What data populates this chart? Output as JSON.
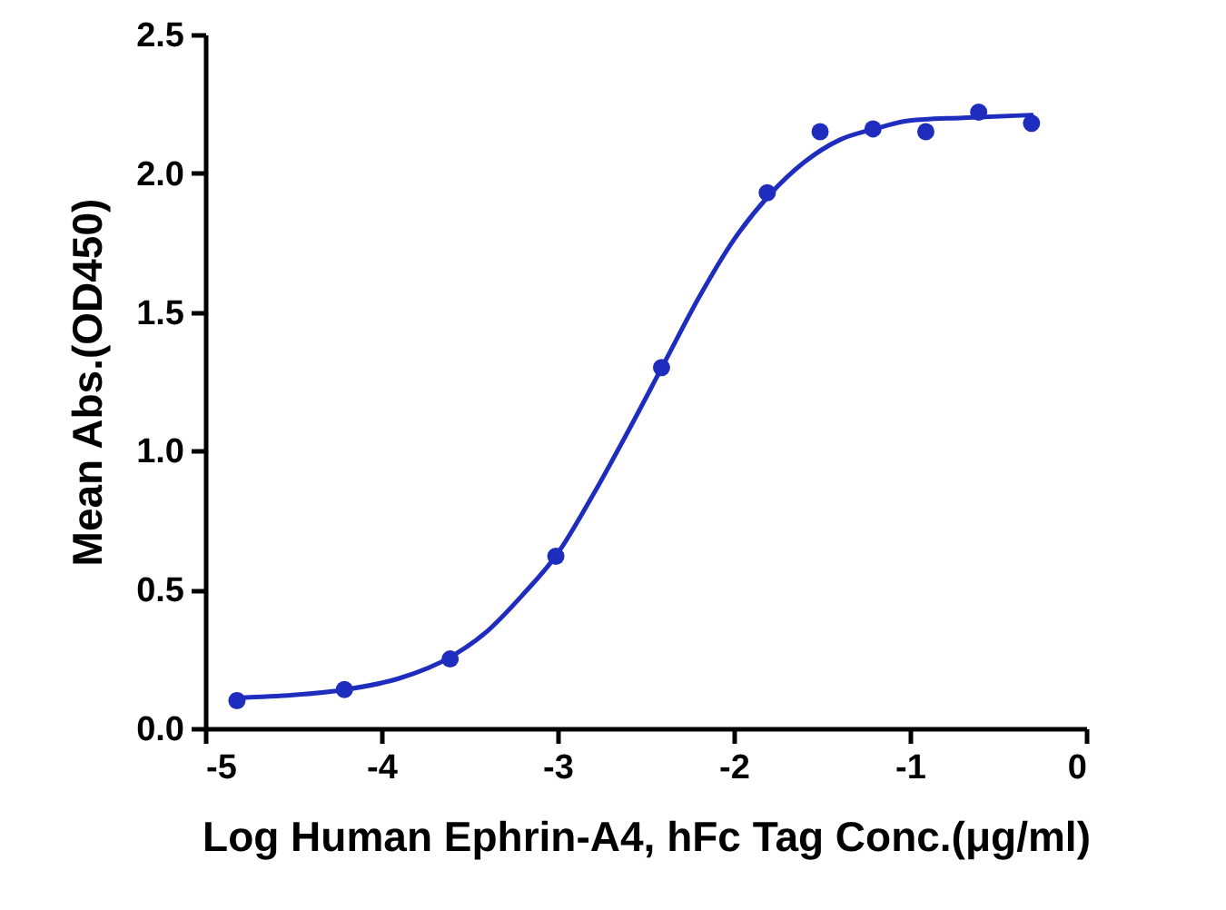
{
  "chart_data": {
    "type": "scatter",
    "xlabel": "Log Human Ephrin-A4, hFc Tag Conc.(μg/ml)",
    "ylabel": "Mean Abs.(OD450)",
    "xlim": [
      -5,
      0
    ],
    "xticks": [
      -5,
      -4,
      -3,
      -2,
      -1,
      0
    ],
    "ylim": [
      0,
      2.5
    ],
    "yticks": [
      {
        "value": 0,
        "label": "0.0"
      },
      {
        "value": 0.5,
        "label": "0.5"
      },
      {
        "value": 1,
        "label": "1.0"
      },
      {
        "value": 1.5,
        "label": "1.5"
      },
      {
        "value": 2,
        "label": "2.0"
      },
      {
        "value": 2.5,
        "label": "2.5"
      }
    ],
    "grid": false,
    "series": [
      {
        "marker": "circle",
        "color": "#1f2dbf",
        "x": [
          -4.82,
          -4.21,
          -3.61,
          -3.01,
          -2.41,
          -1.81,
          -1.51,
          -1.21,
          -0.91,
          -0.61,
          -0.31
        ],
        "values": [
          0.1,
          0.14,
          0.25,
          0.62,
          1.3,
          1.93,
          2.15,
          2.16,
          2.15,
          2.22,
          2.18
        ]
      },
      {
        "type": "line",
        "color": "#1f2dbf",
        "line_style": "solid",
        "x": [
          -4.82,
          -4.5,
          -4.2,
          -3.9,
          -3.6,
          -3.4,
          -3.2,
          -3.0,
          -2.8,
          -2.6,
          -2.4,
          -2.2,
          -2.0,
          -1.8,
          -1.6,
          -1.4,
          -1.2,
          -1.0,
          -0.7,
          -0.31
        ],
        "values": [
          0.11,
          0.12,
          0.14,
          0.18,
          0.26,
          0.35,
          0.48,
          0.63,
          0.84,
          1.07,
          1.31,
          1.55,
          1.76,
          1.92,
          2.04,
          2.12,
          2.16,
          2.19,
          2.2,
          2.21
        ]
      }
    ]
  }
}
